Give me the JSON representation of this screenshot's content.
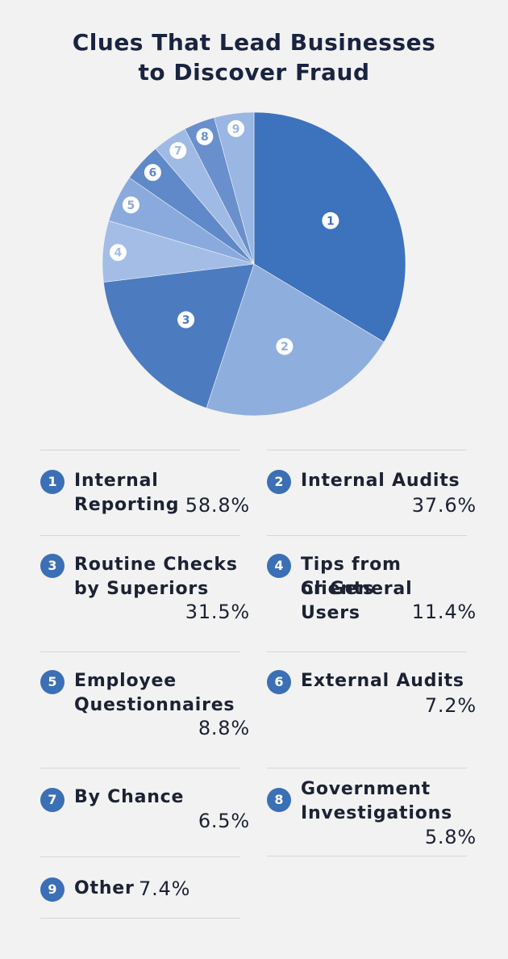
{
  "title_lines": [
    "Clues That Lead Businesses",
    "to Discover Fraud"
  ],
  "colors": {
    "background": "#f2f2f2",
    "badge": "#3b6fb6",
    "slice_1": "#3d72bd",
    "slice_2": "#8eaede",
    "slice_3": "#4c7bc0",
    "slice_4": "#a3bde6",
    "slice_5": "#8aaade",
    "slice_6": "#5f89c8",
    "slice_7": "#9fbae4",
    "slice_8": "#6990cd",
    "slice_9": "#9ab6e2"
  },
  "chart_data": {
    "type": "pie",
    "categories": [
      "Internal Reporting",
      "Internal Audits",
      "Routine Checks by Superiors",
      "Tips from Clients or General Users",
      "Employee Questionnaires",
      "External Audits",
      "By Chance",
      "Government Investigations",
      "Other"
    ],
    "values": [
      58.8,
      37.6,
      31.5,
      11.4,
      8.8,
      7.2,
      6.5,
      5.8,
      7.4
    ],
    "unit": "%",
    "start_angle": "12 o'clock",
    "direction": "clockwise",
    "legend_placement": "below"
  },
  "legend": [
    {
      "num": "1",
      "lines": [
        "Internal",
        "Reporting"
      ],
      "value": "58.8%"
    },
    {
      "num": "2",
      "lines": [
        "Internal Audits"
      ],
      "value": "37.6%"
    },
    {
      "num": "3",
      "lines": [
        "Routine Checks",
        "by Superiors"
      ],
      "value": "31.5%"
    },
    {
      "num": "4",
      "lines": [
        "Tips from Clients",
        "or General Users"
      ],
      "value": "11.4%"
    },
    {
      "num": "5",
      "lines": [
        "Employee",
        "Questionnaires"
      ],
      "value": "8.8%"
    },
    {
      "num": "6",
      "lines": [
        "External Audits"
      ],
      "value": "7.2%"
    },
    {
      "num": "7",
      "lines": [
        "By Chance"
      ],
      "value": "6.5%"
    },
    {
      "num": "8",
      "lines": [
        "Government",
        "Investigations"
      ],
      "value": "5.8%"
    },
    {
      "num": "9",
      "lines": [
        "Other"
      ],
      "value": "7.4%"
    }
  ]
}
